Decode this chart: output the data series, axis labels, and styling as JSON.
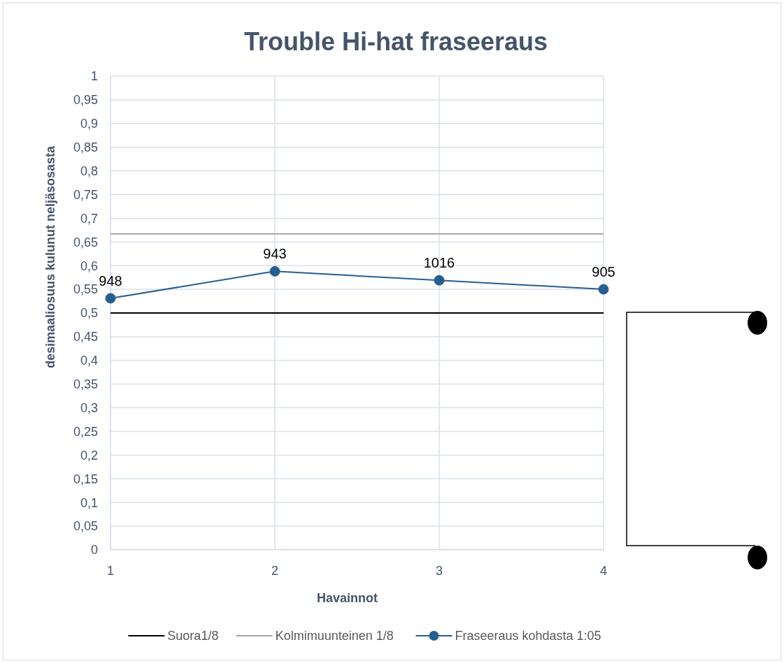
{
  "chart_data": {
    "type": "line",
    "title": "Trouble Hi-hat fraseeraus",
    "xlabel": "Havainnot",
    "ylabel": "desimaaliosuus kulunut neljäsosasta",
    "x": [
      1,
      2,
      3,
      4
    ],
    "xlim": [
      1,
      4
    ],
    "xticks": [
      1,
      2,
      3,
      4
    ],
    "ylim": [
      0,
      1
    ],
    "yticks": [
      0,
      {
        "value": 0.05,
        "label": "0,05"
      },
      {
        "value": 0.1,
        "label": "0,1"
      },
      {
        "value": 0.15,
        "label": "0,15"
      },
      {
        "value": 0.2,
        "label": "0,2"
      },
      {
        "value": 0.25,
        "label": "0,25"
      },
      {
        "value": 0.3,
        "label": "0,3"
      },
      {
        "value": 0.35,
        "label": "0,35"
      },
      {
        "value": 0.4,
        "label": "0,4"
      },
      {
        "value": 0.45,
        "label": "0,45"
      },
      {
        "value": 0.5,
        "label": "0,5"
      },
      {
        "value": 0.55,
        "label": "0,55"
      },
      {
        "value": 0.6,
        "label": "0,6"
      },
      {
        "value": 0.65,
        "label": "0,65"
      },
      {
        "value": 0.7,
        "label": "0,7"
      },
      {
        "value": 0.75,
        "label": "0,75"
      },
      {
        "value": 0.8,
        "label": "0,8"
      },
      {
        "value": 0.85,
        "label": "0,85"
      },
      {
        "value": 0.9,
        "label": "0,9"
      },
      {
        "value": 0.95,
        "label": "0,95"
      },
      1
    ],
    "annotations": [
      {
        "text": "948",
        "x": 1,
        "y": 0.531
      },
      {
        "text": "943",
        "x": 2,
        "y": 0.588
      },
      {
        "text": "1016",
        "x": 3,
        "y": 0.569
      },
      {
        "text": "905",
        "x": 4,
        "y": 0.55
      }
    ],
    "grid": true,
    "legend": "bottom",
    "series": [
      {
        "name": "Suora1/8",
        "color": "#000000",
        "values": [
          0.5,
          0.5,
          0.5,
          0.5
        ],
        "marker": "none"
      },
      {
        "name": "Kolmimuunteinen 1/8",
        "color": "#a5a5a5",
        "values": [
          0.667,
          0.667,
          0.667,
          0.667
        ],
        "marker": "none"
      },
      {
        "name": "Fraseeraus kohdasta 1:05",
        "color": "#255e91",
        "values": [
          0.531,
          0.588,
          0.569,
          0.55
        ],
        "marker": "circle"
      }
    ]
  }
}
